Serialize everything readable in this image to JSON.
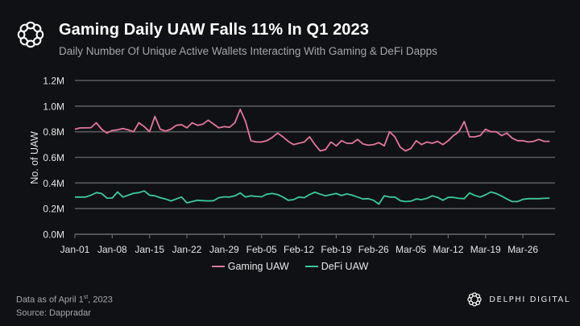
{
  "header": {
    "title": "Gaming Daily UAW Falls 11% In Q1 2023",
    "subtitle": "Daily Number Of Unique Active Wallets Interacting With Gaming & DeFi Dapps",
    "logo_icon": "delphi-knot-icon"
  },
  "footer": {
    "data_as_of_prefix": "Data as of April 1",
    "data_as_of_sup": "st",
    "data_as_of_suffix": ", 2023",
    "source": "Source: Dappradar"
  },
  "brand": {
    "name": "DELPHI DIGITAL",
    "logo_icon": "delphi-knot-icon"
  },
  "colors": {
    "background": "#101114",
    "gaming": "#e0789a",
    "defi": "#3ec99a",
    "grid": "#5a5a5c",
    "text": "#e6e6e6"
  },
  "chart_data": {
    "type": "line",
    "title": "Gaming Daily UAW Falls 11% In Q1 2023",
    "xlabel": "",
    "ylabel": "No. of UAW",
    "ylim": [
      0,
      1200000
    ],
    "yticks": [
      0,
      200000,
      400000,
      600000,
      800000,
      1000000,
      1200000
    ],
    "ytick_labels": [
      "0.0M",
      "0.2M",
      "0.4M",
      "0.6M",
      "0.8M",
      "1.0M",
      "1.2M"
    ],
    "x_start": "2023-01-01",
    "x_end": "2023-03-31",
    "xtick_labels": [
      "Jan-01",
      "Jan-08",
      "Jan-15",
      "Jan-22",
      "Jan-29",
      "Feb-05",
      "Feb-12",
      "Feb-19",
      "Feb-26",
      "Mar-05",
      "Mar-12",
      "Mar-19",
      "Mar-26"
    ],
    "xtick_day_index": [
      0,
      7,
      14,
      21,
      28,
      35,
      42,
      49,
      56,
      63,
      70,
      77,
      84
    ],
    "grid": true,
    "legend_position": "bottom-center",
    "series": [
      {
        "name": "Gaming UAW",
        "color": "#e0789a",
        "values": [
          820000,
          830000,
          830000,
          832000,
          870000,
          820000,
          790000,
          810000,
          815000,
          825000,
          815000,
          800000,
          870000,
          840000,
          800000,
          920000,
          820000,
          805000,
          820000,
          850000,
          855000,
          830000,
          870000,
          850000,
          860000,
          890000,
          860000,
          830000,
          840000,
          835000,
          870000,
          975000,
          880000,
          730000,
          720000,
          720000,
          730000,
          755000,
          790000,
          760000,
          725000,
          700000,
          710000,
          720000,
          760000,
          700000,
          650000,
          660000,
          720000,
          690000,
          730000,
          710000,
          710000,
          740000,
          705000,
          695000,
          700000,
          715000,
          690000,
          800000,
          760000,
          680000,
          650000,
          670000,
          730000,
          700000,
          720000,
          710000,
          725000,
          700000,
          730000,
          770000,
          800000,
          880000,
          760000,
          760000,
          770000,
          820000,
          800000,
          800000,
          770000,
          790000,
          750000,
          730000,
          730000,
          720000,
          725000,
          740000,
          725000,
          725000
        ]
      },
      {
        "name": "DeFi UAW",
        "color": "#3ec99a",
        "values": [
          290000,
          290000,
          290000,
          305000,
          325000,
          318000,
          282000,
          283000,
          330000,
          290000,
          305000,
          320000,
          325000,
          338000,
          305000,
          300000,
          285000,
          275000,
          260000,
          275000,
          290000,
          245000,
          255000,
          265000,
          262000,
          260000,
          262000,
          285000,
          292000,
          290000,
          300000,
          322000,
          290000,
          300000,
          295000,
          292000,
          313000,
          318000,
          310000,
          290000,
          265000,
          270000,
          290000,
          285000,
          310000,
          328000,
          313000,
          300000,
          310000,
          318000,
          302000,
          315000,
          305000,
          290000,
          275000,
          278000,
          265000,
          235000,
          300000,
          290000,
          290000,
          262000,
          255000,
          258000,
          275000,
          270000,
          280000,
          300000,
          288000,
          265000,
          288000,
          288000,
          280000,
          278000,
          322000,
          303000,
          290000,
          308000,
          330000,
          318000,
          298000,
          275000,
          255000,
          255000,
          272000,
          278000,
          278000,
          278000,
          280000,
          282000
        ]
      }
    ]
  }
}
